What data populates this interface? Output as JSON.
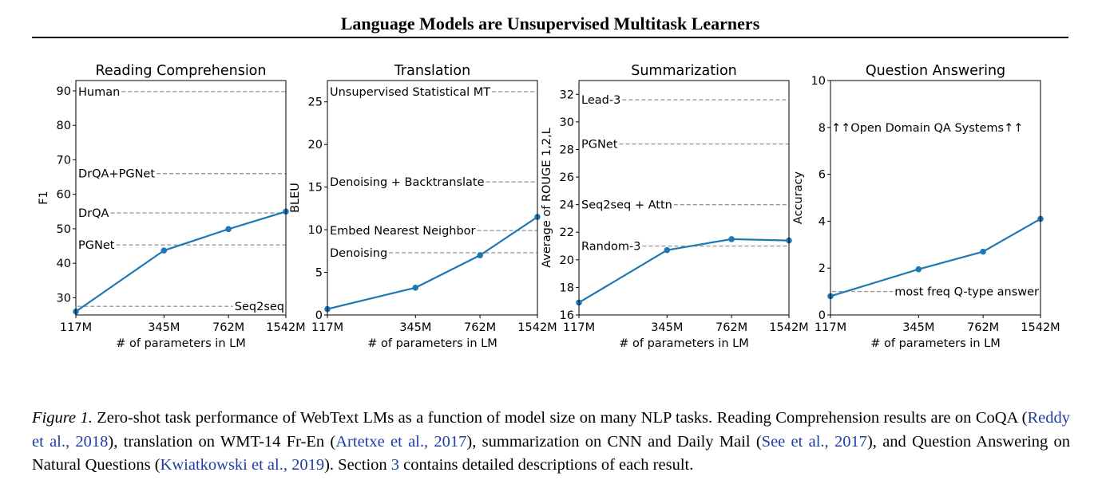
{
  "header": {
    "title": "Language Models are Unsupervised Multitask Learners"
  },
  "colors": {
    "line": "#1f77b4",
    "baseline": "#999999",
    "reference_link": "#1f3fa0"
  },
  "chart_data": [
    {
      "type": "line",
      "title": "Reading Comprehension",
      "xlabel": "# of parameters in LM",
      "ylabel": "F1",
      "x_scale": "log",
      "categories": [
        "117M",
        "345M",
        "762M",
        "1542M"
      ],
      "series": [
        {
          "values": [
            26.0,
            43.7,
            49.9,
            55.0
          ]
        }
      ],
      "ylim": [
        25,
        93
      ],
      "yticks": [
        30,
        40,
        50,
        60,
        70,
        80,
        90
      ],
      "baselines": [
        {
          "label": "Human",
          "value": 89.8,
          "label_side": "left"
        },
        {
          "label": "DrQA+PGNet",
          "value": 66.0,
          "label_side": "left"
        },
        {
          "label": "DrQA",
          "value": 54.6,
          "label_side": "left"
        },
        {
          "label": "PGNet",
          "value": 45.3,
          "label_side": "left"
        },
        {
          "label": "Seq2seq",
          "value": 27.5,
          "label_side": "right"
        }
      ]
    },
    {
      "type": "line",
      "title": "Translation",
      "xlabel": "# of parameters in LM",
      "ylabel": "BLEU",
      "x_scale": "log",
      "categories": [
        "117M",
        "345M",
        "762M",
        "1542M"
      ],
      "series": [
        {
          "values": [
            0.7,
            3.2,
            7.0,
            11.5
          ]
        }
      ],
      "ylim": [
        0,
        27.5
      ],
      "yticks": [
        0,
        5,
        10,
        15,
        20,
        25
      ],
      "baselines": [
        {
          "label": "Unsupervised Statistical MT",
          "value": 26.2,
          "label_side": "left"
        },
        {
          "label": "Denoising + Backtranslate",
          "value": 15.6,
          "label_side": "left"
        },
        {
          "label": "Embed Nearest Neighbor",
          "value": 9.9,
          "label_side": "left"
        },
        {
          "label": "Denoising",
          "value": 7.3,
          "label_side": "left"
        }
      ]
    },
    {
      "type": "line",
      "title": "Summarization",
      "xlabel": "# of parameters in LM",
      "ylabel": "Average of ROUGE 1,2,L",
      "x_scale": "log",
      "categories": [
        "117M",
        "345M",
        "762M",
        "1542M"
      ],
      "series": [
        {
          "values": [
            16.9,
            20.7,
            21.5,
            21.4
          ]
        }
      ],
      "ylim": [
        16,
        33
      ],
      "yticks": [
        16,
        18,
        20,
        22,
        24,
        26,
        28,
        30,
        32
      ],
      "baselines": [
        {
          "label": "Lead-3",
          "value": 31.6,
          "label_side": "left"
        },
        {
          "label": "PGNet",
          "value": 28.4,
          "label_side": "left"
        },
        {
          "label": "Seq2seq + Attn",
          "value": 24.0,
          "label_side": "left"
        },
        {
          "label": "Random-3",
          "value": 21.0,
          "label_side": "left"
        }
      ]
    },
    {
      "type": "line",
      "title": "Question Answering",
      "xlabel": "# of parameters in LM",
      "ylabel": "Accuracy",
      "x_scale": "log",
      "categories": [
        "117M",
        "345M",
        "762M",
        "1542M"
      ],
      "series": [
        {
          "values": [
            0.8,
            1.95,
            2.7,
            4.1
          ]
        }
      ],
      "ylim": [
        0,
        10
      ],
      "yticks": [
        0,
        2,
        4,
        6,
        8,
        10
      ],
      "baselines": [
        {
          "label": "most freq Q-type answer",
          "value": 1.0,
          "label_side": "right"
        }
      ],
      "annotations": [
        {
          "text": "↑↑Open Domain QA Systems↑↑",
          "y": 8.0
        }
      ]
    }
  ],
  "caption": {
    "label": "Figure 1.",
    "text_1": " Zero-shot task performance of WebText LMs as a function of model size on many NLP tasks. Reading Comprehension results are on CoQA (",
    "ref_1": "Reddy et al., 2018",
    "text_2": "), translation on WMT-14 Fr-En (",
    "ref_2": "Artetxe et al., 2017",
    "text_3": "), summarization on CNN and Daily Mail (",
    "ref_3": "See et al., 2017",
    "text_4": "), and Question Answering on Natural Questions (",
    "ref_4": "Kwiatkowski et al., 2019",
    "text_5": "). Section ",
    "ref_5": "3",
    "text_6": " contains detailed descriptions of each result."
  }
}
